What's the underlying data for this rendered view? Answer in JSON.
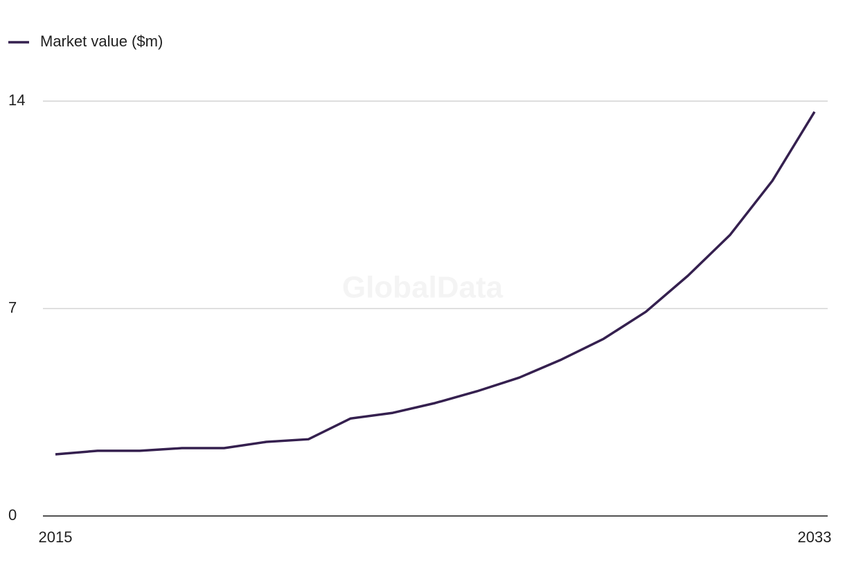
{
  "chart_data": {
    "type": "line",
    "watermark": "GlobalData",
    "x": [
      2015,
      2016,
      2017,
      2018,
      2019,
      2020,
      2021,
      2022,
      2023,
      2024,
      2025,
      2026,
      2027,
      2028,
      2029,
      2030,
      2031,
      2032,
      2033
    ],
    "series": [
      {
        "name": "Market value ($m)",
        "color": "#35204f",
        "values": [
          2.08,
          2.2,
          2.2,
          2.29,
          2.29,
          2.5,
          2.59,
          3.29,
          3.48,
          3.81,
          4.21,
          4.67,
          5.28,
          5.98,
          6.89,
          8.11,
          9.49,
          11.31,
          13.64
        ]
      }
    ],
    "xlim": [
      2015,
      2033
    ],
    "xticks": [
      2015,
      2033
    ],
    "ylim": [
      0,
      14
    ],
    "yticks": [
      0,
      7,
      14
    ],
    "grid": true,
    "legend": "top-left"
  }
}
